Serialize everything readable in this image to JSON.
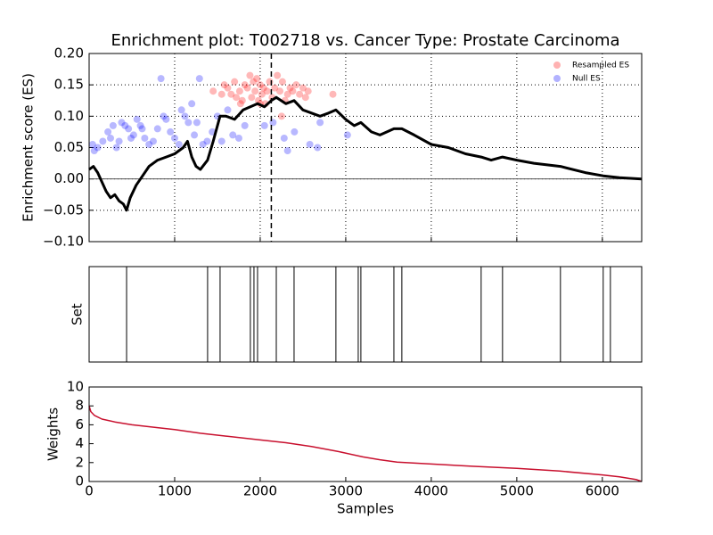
{
  "chart_data": [
    {
      "type": "scatter",
      "title": "Enrichment plot: T002718 vs. Cancer Type: Prostate Carcinoma",
      "ylabel": "Enrichment score (ES)",
      "xlim": [
        0,
        6460
      ],
      "ylim": [
        -0.1,
        0.2
      ],
      "xticks": [
        0,
        1000,
        2000,
        3000,
        4000,
        5000,
        6000
      ],
      "yticks": [
        {
          "value": -0.1,
          "label": "−0.10"
        },
        {
          "value": -0.05,
          "label": "−0.05"
        },
        {
          "value": 0,
          "label": "0.00"
        },
        {
          "value": 0.05,
          "label": "0.05"
        },
        {
          "value": 0.1,
          "label": "0.10"
        },
        {
          "value": 0.15,
          "label": "0.15"
        },
        {
          "value": 0.2,
          "label": "0.20"
        }
      ],
      "grid": true,
      "legend": "upper right",
      "marker_x": 2130,
      "series": [
        {
          "name": "Resampled ES",
          "color": "#ff0000",
          "x": [
            1450,
            1550,
            1580,
            1620,
            1660,
            1700,
            1720,
            1760,
            1790,
            1820,
            1850,
            1880,
            1900,
            1920,
            1940,
            1960,
            1980,
            2000,
            2020,
            2040,
            2060,
            2080,
            2110,
            2140,
            2170,
            2200,
            2230,
            2260,
            2290,
            2320,
            2350,
            2380,
            2420,
            2460,
            2500,
            2530,
            2560,
            2250,
            2850,
            2000,
            1770
          ],
          "values": [
            0.14,
            0.135,
            0.15,
            0.145,
            0.135,
            0.155,
            0.13,
            0.14,
            0.125,
            0.15,
            0.145,
            0.165,
            0.13,
            0.155,
            0.14,
            0.16,
            0.125,
            0.15,
            0.135,
            0.145,
            0.12,
            0.14,
            0.155,
            0.13,
            0.145,
            0.165,
            0.14,
            0.155,
            0.125,
            0.135,
            0.145,
            0.14,
            0.15,
            0.135,
            0.145,
            0.13,
            0.14,
            0.1,
            0.135,
            0.12,
            0.12
          ]
        },
        {
          "name": "Null ES",
          "color": "#0000ff",
          "x": [
            40,
            60,
            100,
            160,
            220,
            250,
            280,
            320,
            350,
            380,
            420,
            460,
            490,
            520,
            560,
            600,
            620,
            650,
            700,
            750,
            800,
            840,
            870,
            900,
            950,
            1000,
            1050,
            1080,
            1120,
            1160,
            1200,
            1230,
            1260,
            1290,
            1330,
            1380,
            1440,
            1500,
            1550,
            1620,
            1680,
            1750,
            1820,
            2050,
            2150,
            2280,
            2320,
            2400,
            2580,
            2670,
            2700,
            3020
          ],
          "values": [
            0.055,
            0.045,
            0.05,
            0.06,
            0.075,
            0.065,
            0.085,
            0.05,
            0.06,
            0.09,
            0.085,
            0.08,
            0.065,
            0.07,
            0.095,
            0.085,
            0.08,
            0.065,
            0.055,
            0.06,
            0.08,
            0.16,
            0.1,
            0.095,
            0.075,
            0.065,
            0.055,
            0.11,
            0.1,
            0.09,
            0.12,
            0.07,
            0.09,
            0.16,
            0.055,
            0.06,
            0.075,
            0.1,
            0.06,
            0.11,
            0.07,
            0.065,
            0.085,
            0.085,
            0.09,
            0.065,
            0.045,
            0.075,
            0.055,
            0.05,
            0.09,
            0.07
          ]
        }
      ],
      "line": {
        "color": "#000000",
        "x": [
          0,
          50,
          100,
          200,
          250,
          300,
          350,
          400,
          438,
          480,
          550,
          600,
          700,
          800,
          900,
          1000,
          1100,
          1150,
          1200,
          1250,
          1300,
          1385,
          1450,
          1531,
          1600,
          1700,
          1800,
          1885,
          1969,
          2050,
          2130,
          2188,
          2300,
          2396,
          2500,
          2600,
          2700,
          2800,
          2885,
          3000,
          3100,
          3177,
          3300,
          3400,
          3563,
          3656,
          3800,
          4000,
          4200,
          4400,
          4583,
          4700,
          4833,
          5000,
          5200,
          5510,
          5800,
          6010,
          6200,
          6460
        ],
        "values": [
          0.015,
          0.02,
          0.01,
          -0.02,
          -0.03,
          -0.025,
          -0.035,
          -0.04,
          -0.05,
          -0.03,
          -0.01,
          0,
          0.02,
          0.03,
          0.035,
          0.04,
          0.05,
          0.06,
          0.035,
          0.02,
          0.015,
          0.03,
          0.06,
          0.1,
          0.1,
          0.095,
          0.11,
          0.115,
          0.12,
          0.115,
          0.125,
          0.13,
          0.12,
          0.125,
          0.11,
          0.105,
          0.1,
          0.105,
          0.11,
          0.095,
          0.085,
          0.09,
          0.075,
          0.07,
          0.08,
          0.08,
          0.07,
          0.055,
          0.05,
          0.04,
          0.035,
          0.03,
          0.035,
          0.03,
          0.025,
          0.02,
          0.01,
          0.005,
          0.002,
          0
        ]
      }
    },
    {
      "type": "rug",
      "ylabel": "Set",
      "xlim": [
        0,
        6460
      ],
      "x": [
        438,
        1385,
        1531,
        1885,
        1927,
        1969,
        2188,
        2396,
        2885,
        3146,
        3177,
        3563,
        3656,
        4583,
        4833,
        5510,
        6010,
        6094
      ]
    },
    {
      "type": "line",
      "xlabel": "Samples",
      "ylabel": "Weights",
      "color": "#c8102e",
      "xlim": [
        0,
        6460
      ],
      "ylim": [
        0,
        10
      ],
      "xticks": [
        0,
        1000,
        2000,
        3000,
        4000,
        5000,
        6000
      ],
      "yticks": [
        0,
        2,
        4,
        6,
        8,
        10
      ],
      "x": [
        0,
        20,
        60,
        150,
        300,
        500,
        800,
        1000,
        1300,
        1600,
        2000,
        2300,
        2600,
        2900,
        3200,
        3400,
        3600,
        4000,
        4500,
        5000,
        5500,
        6000,
        6200,
        6400,
        6460
      ],
      "values": [
        8,
        7.4,
        7,
        6.6,
        6.3,
        6,
        5.7,
        5.5,
        5.1,
        4.8,
        4.4,
        4.1,
        3.7,
        3.2,
        2.6,
        2.3,
        2.05,
        1.85,
        1.6,
        1.4,
        1.1,
        0.7,
        0.5,
        0.2,
        0
      ]
    }
  ]
}
